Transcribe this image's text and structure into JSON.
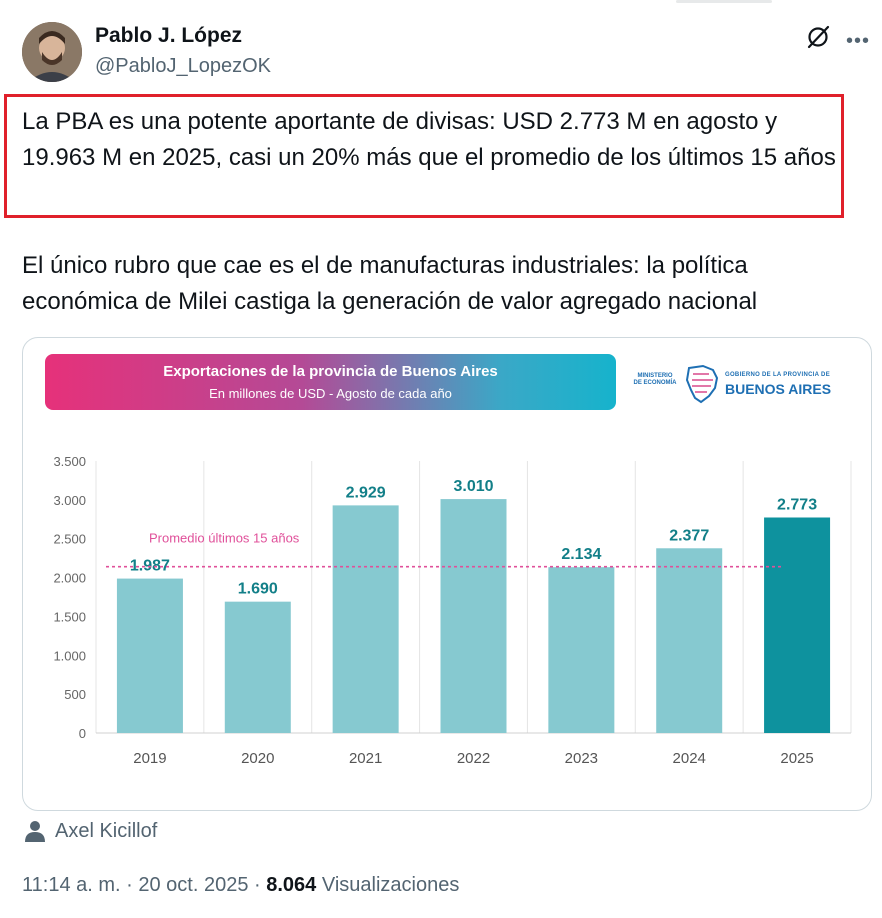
{
  "author": {
    "name": "Pablo J. López",
    "handle": "@PabloJ_LopezOK"
  },
  "icons": [
    "grok-icon",
    "more-icon",
    "person-icon"
  ],
  "tweet": {
    "paragraph1": "La PBA es una potente aportante de divisas: USD 2.773 M en agosto y 19.963 M en 2025, casi un 20% más que el promedio de los últimos 15 años",
    "paragraph2": "El único rubro que cae es el de manufacturas industriales: la política económica de Milei castiga la generación de valor agregado nacional"
  },
  "card": {
    "banner_title": "Exportaciones de la provincia de Buenos Aires",
    "banner_subtitle": "En millones de USD - Agosto de cada año",
    "logo_ministry": "MINISTERIO DE ECONOMÍA",
    "logo_gov": "GOBIERNO DE LA PROVINCIA DE",
    "logo_name": "BUENOS AIRES"
  },
  "chart_data": {
    "type": "bar",
    "categories": [
      "2019",
      "2020",
      "2021",
      "2022",
      "2023",
      "2024",
      "2025"
    ],
    "values": [
      1987,
      1690,
      2929,
      3010,
      2134,
      2377,
      2773
    ],
    "value_labels": [
      "1.987",
      "1.690",
      "2.929",
      "3.010",
      "2.134",
      "2.377",
      "2.773"
    ],
    "ylim": [
      0,
      3500
    ],
    "yticks": [
      0,
      500,
      1000,
      1500,
      2000,
      2500,
      3000,
      3500
    ],
    "ytick_labels": [
      "0",
      "500",
      "1.000",
      "1.500",
      "2.000",
      "2.500",
      "3.000",
      "3.500"
    ],
    "reference_line": {
      "label": "Promedio últimos 15 años",
      "value": 2140,
      "color": "#e0509a"
    },
    "bar_color": "#86c9d0",
    "highlight_color": "#0e929e",
    "highlight_index": 6,
    "grid": "vertical"
  },
  "attribution": "Axel Kicillof",
  "meta": {
    "time": "11:14 a. m.",
    "sep1": " · ",
    "date": "20 oct. 2025",
    "sep2": " · ",
    "views_count": "8.064",
    "views_label": "Visualizaciones"
  }
}
